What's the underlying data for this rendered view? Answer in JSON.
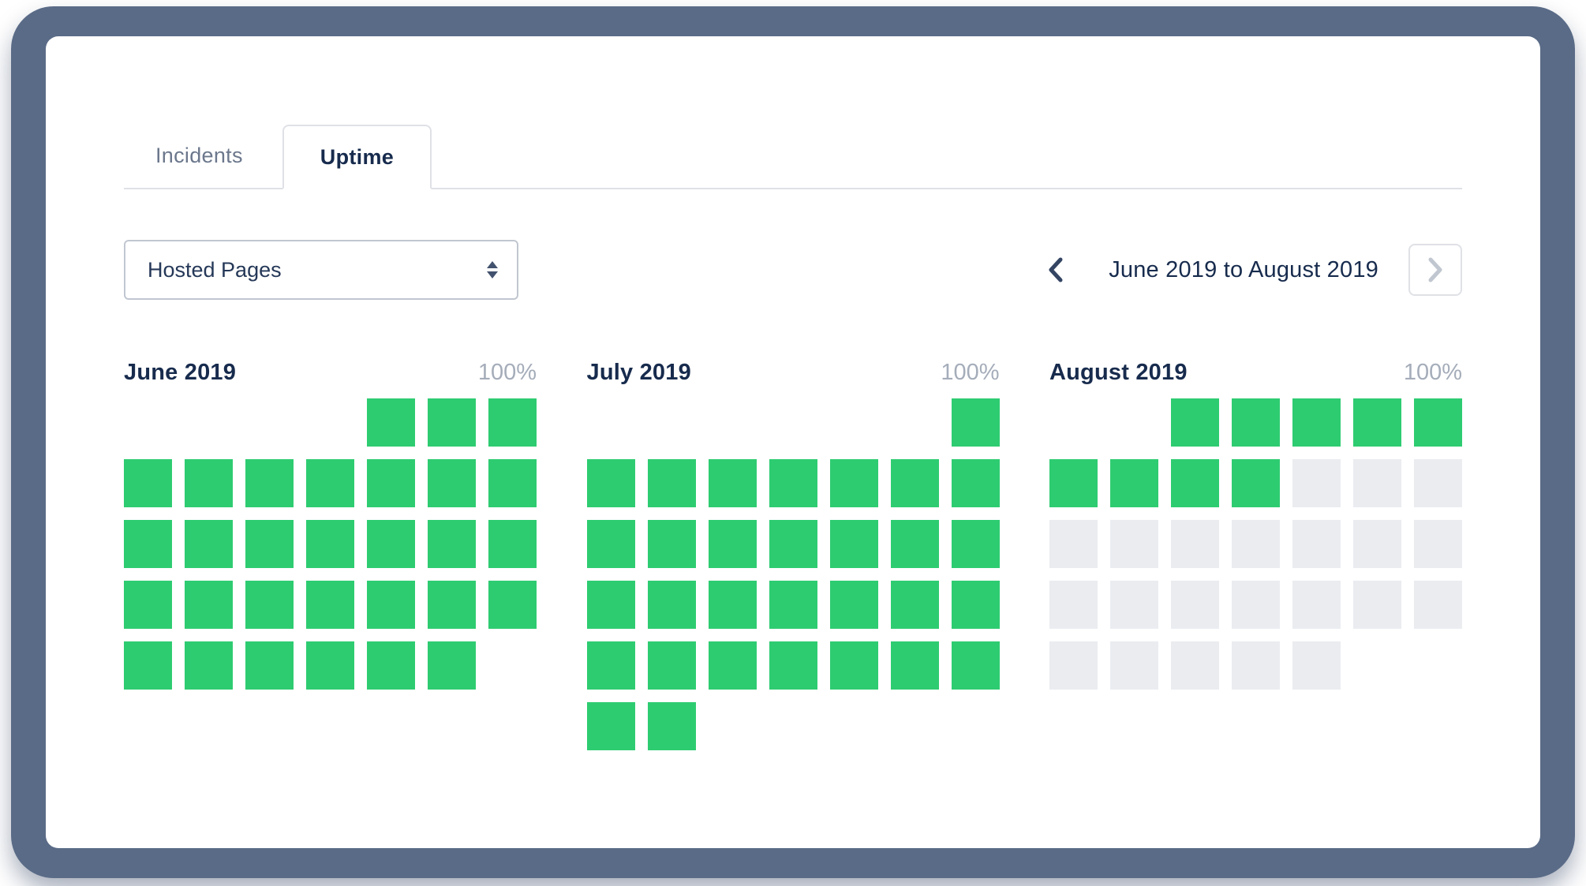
{
  "window": {
    "frame_color": "#5A6B87"
  },
  "tabs": {
    "items": [
      {
        "label": "Incidents",
        "active": false
      },
      {
        "label": "Uptime",
        "active": true
      }
    ]
  },
  "controls": {
    "page_selector": {
      "value": "Hosted Pages"
    },
    "date_nav": {
      "prev_icon": "chevron-left",
      "range_label": "June 2019 to August 2019",
      "next_icon": "chevron-right"
    }
  },
  "uptime": {
    "legend": {
      "up_color": "#2ECC71",
      "empty_color": "#EAECF0"
    },
    "months": [
      {
        "name": "June 2019",
        "uptime_label": "100%",
        "rows": [
          [
            0,
            0,
            0,
            0,
            1,
            1,
            1
          ],
          [
            1,
            1,
            1,
            1,
            1,
            1,
            1
          ],
          [
            1,
            1,
            1,
            1,
            1,
            1,
            1
          ],
          [
            1,
            1,
            1,
            1,
            1,
            1,
            1
          ],
          [
            1,
            1,
            1,
            1,
            1,
            1,
            0
          ]
        ]
      },
      {
        "name": "July 2019",
        "uptime_label": "100%",
        "rows": [
          [
            0,
            0,
            0,
            0,
            0,
            0,
            1
          ],
          [
            1,
            1,
            1,
            1,
            1,
            1,
            1
          ],
          [
            1,
            1,
            1,
            1,
            1,
            1,
            1
          ],
          [
            1,
            1,
            1,
            1,
            1,
            1,
            1
          ],
          [
            1,
            1,
            1,
            1,
            1,
            1,
            1
          ],
          [
            1,
            1,
            0,
            0,
            0,
            0,
            0
          ]
        ]
      },
      {
        "name": "August 2019",
        "uptime_label": "100%",
        "rows": [
          [
            0,
            0,
            1,
            1,
            1,
            1,
            1
          ],
          [
            1,
            1,
            1,
            1,
            2,
            2,
            2
          ],
          [
            2,
            2,
            2,
            2,
            2,
            2,
            2
          ],
          [
            2,
            2,
            2,
            2,
            2,
            2,
            2
          ],
          [
            2,
            2,
            2,
            2,
            2,
            0,
            0
          ]
        ]
      }
    ]
  }
}
